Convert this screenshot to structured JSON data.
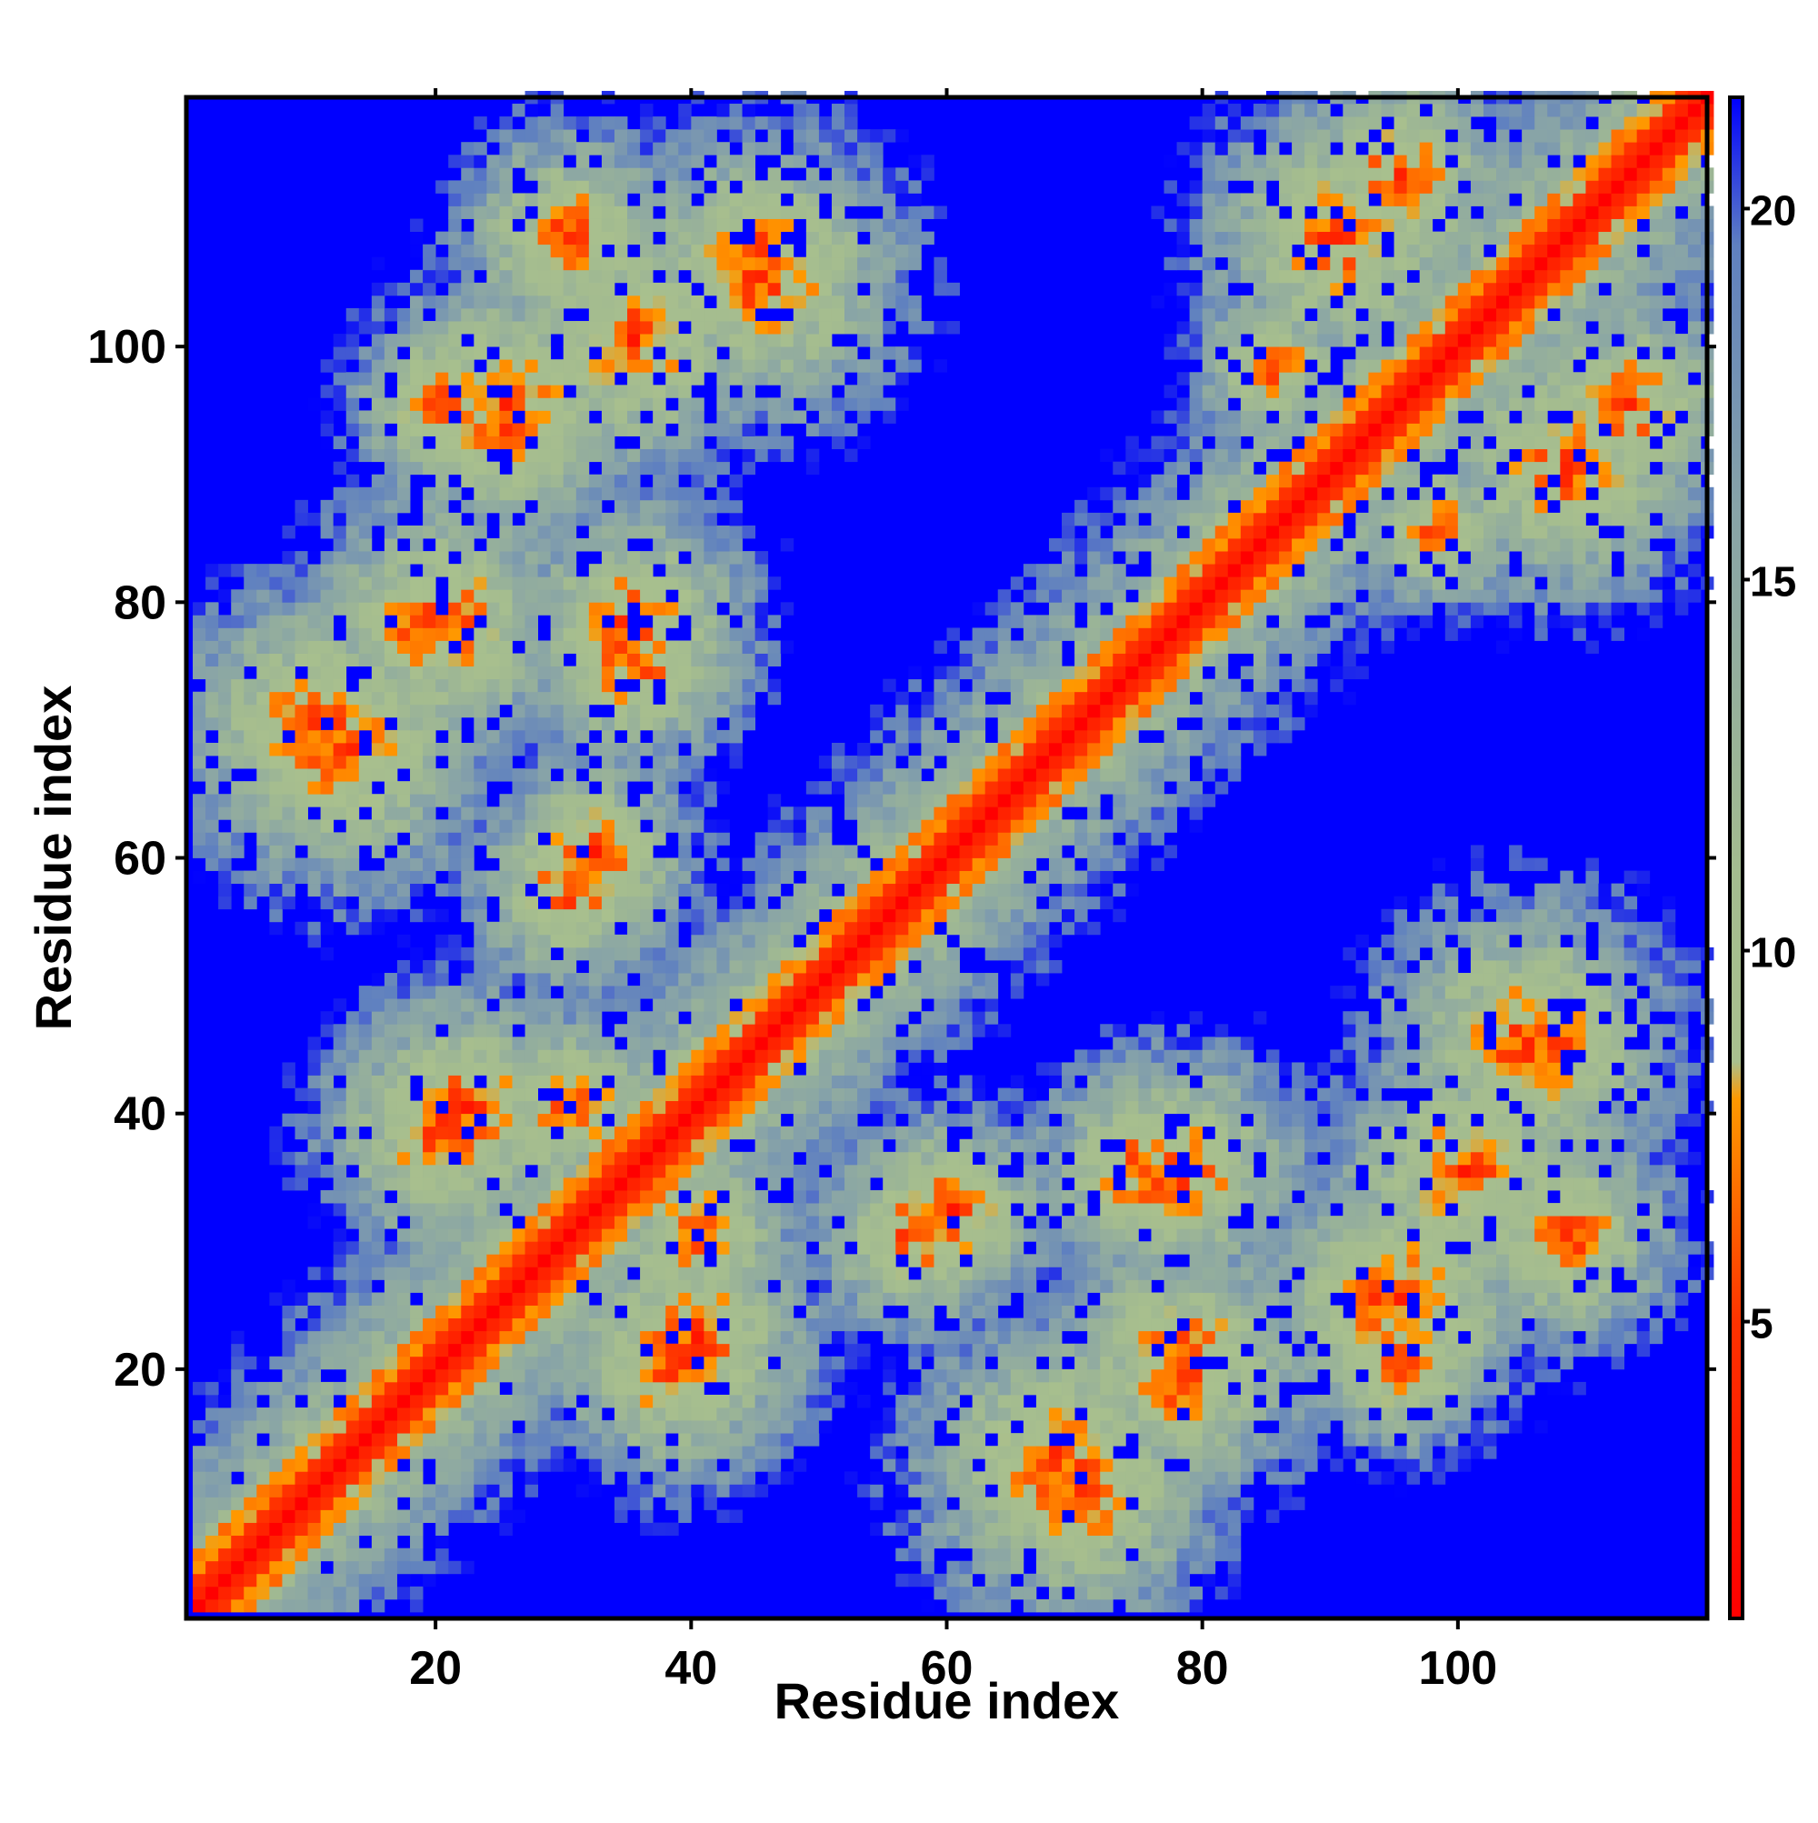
{
  "chart_data": {
    "type": "heatmap",
    "title": "",
    "xlabel": "Residue index",
    "ylabel": "Residue index",
    "n_residues": 119,
    "xlim": [
      1,
      119
    ],
    "ylim": [
      1,
      119
    ],
    "x_ticks": [
      20,
      40,
      60,
      80,
      100
    ],
    "y_ticks": [
      20,
      40,
      60,
      80,
      100
    ],
    "colorbar": {
      "ticks": [
        5,
        10,
        15,
        20
      ],
      "range": [
        1,
        21.5
      ],
      "stops": [
        {
          "value": 1.0,
          "color": "#ff0000"
        },
        {
          "value": 5.0,
          "color": "#ff3300"
        },
        {
          "value": 8.0,
          "color": "#ff9900"
        },
        {
          "value": 8.5,
          "color": "#a9c08e"
        },
        {
          "value": 11.0,
          "color": "#a4bc8f"
        },
        {
          "value": 16.0,
          "color": "#87a3a8"
        },
        {
          "value": 19.5,
          "color": "#5f80c0"
        },
        {
          "value": 21.5,
          "color": "#0000ff"
        }
      ]
    },
    "contact_clusters": [
      {
        "i": 25,
        "j": 95,
        "radius": 12
      },
      {
        "i": 35,
        "j": 100,
        "radius": 12
      },
      {
        "i": 45,
        "j": 107,
        "radius": 10
      },
      {
        "i": 10,
        "j": 70,
        "radius": 12
      },
      {
        "i": 20,
        "j": 78,
        "radius": 12
      },
      {
        "i": 35,
        "j": 78,
        "radius": 11
      },
      {
        "i": 30,
        "j": 57,
        "radius": 9
      },
      {
        "i": 20,
        "j": 38,
        "radius": 11
      },
      {
        "i": 30,
        "j": 40,
        "radius": 9
      },
      {
        "i": 40,
        "j": 22,
        "radius": 11
      },
      {
        "i": 60,
        "j": 32,
        "radius": 9
      },
      {
        "i": 75,
        "j": 35,
        "radius": 10
      },
      {
        "i": 68,
        "j": 12,
        "radius": 13
      },
      {
        "i": 78,
        "j": 18,
        "radius": 8
      },
      {
        "i": 93,
        "j": 25,
        "radius": 10
      },
      {
        "i": 105,
        "j": 45,
        "radius": 13
      },
      {
        "i": 108,
        "j": 30,
        "radius": 10
      },
      {
        "i": 95,
        "j": 113,
        "radius": 10
      },
      {
        "i": 108,
        "j": 90,
        "radius": 12
      },
      {
        "i": 85,
        "j": 98,
        "radius": 7
      },
      {
        "i": 95,
        "j": 20,
        "radius": 8
      }
    ],
    "diagonal_band_width": 16
  }
}
